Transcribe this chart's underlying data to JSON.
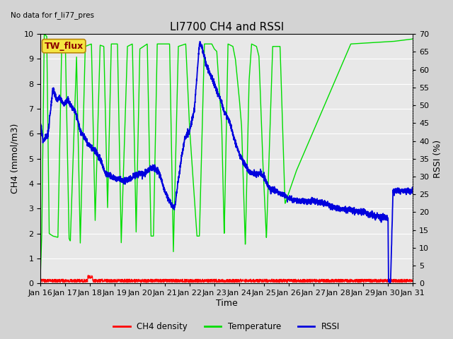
{
  "title": "LI7700 CH4 and RSSI",
  "top_left_text": "No data for f_li77_pres",
  "annotation_box": "TW_flux",
  "xlabel": "Time",
  "ylabel_left": "CH4 (mmol/m3)",
  "ylabel_right": "RSSI (%)",
  "xlim": [
    0,
    15
  ],
  "ylim_left": [
    0.0,
    10.0
  ],
  "ylim_right": [
    0,
    70
  ],
  "yticks_left": [
    0.0,
    1.0,
    2.0,
    3.0,
    4.0,
    5.0,
    6.0,
    7.0,
    8.0,
    9.0,
    10.0
  ],
  "yticks_right": [
    0,
    5,
    10,
    15,
    20,
    25,
    30,
    35,
    40,
    45,
    50,
    55,
    60,
    65,
    70
  ],
  "xtick_labels": [
    "Jan 16",
    "Jan 17",
    "Jan 18",
    "Jan 19",
    "Jan 20",
    "Jan 21",
    "Jan 22",
    "Jan 23",
    "Jan 24",
    "Jan 25",
    "Jan 26",
    "Jan 27",
    "Jan 28",
    "Jan 29",
    "Jan 30",
    "Jan 31"
  ],
  "background_color": "#d3d3d3",
  "plot_bg_color": "#e8e8e8",
  "grid_color": "#ffffff",
  "ch4_color": "#ff0000",
  "temp_color": "#00dd00",
  "rssi_color": "#0000dd",
  "legend_labels": [
    "CH4 density",
    "Temperature",
    "RSSI"
  ],
  "title_fontsize": 11,
  "axis_label_fontsize": 9,
  "tick_fontsize": 8,
  "annotation_fontsize": 9,
  "rssi_scale": 7.0
}
